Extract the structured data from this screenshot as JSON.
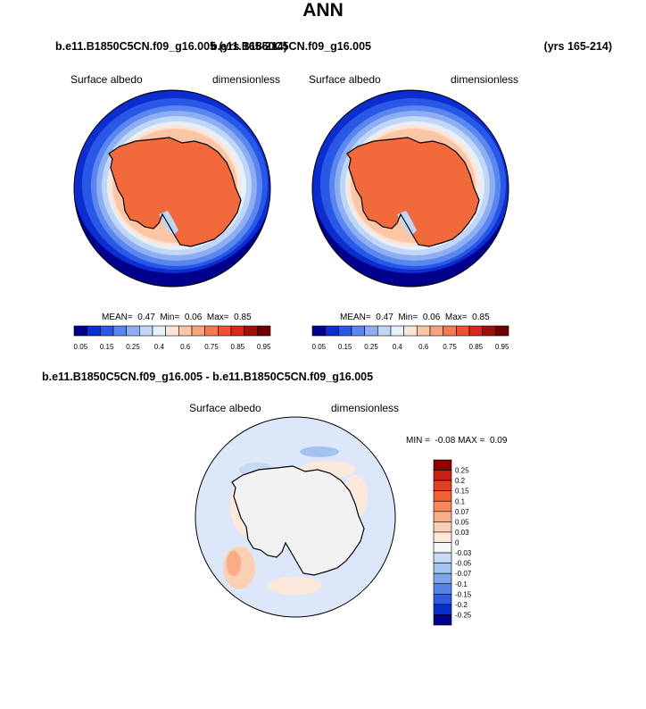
{
  "title": "ANN",
  "panels": [
    {
      "case_label": "b.e11.B1850C5CN.f09_g16.005 (yrs 165-214)",
      "variable": "Surface albedo",
      "units": "dimensionless",
      "stats": {
        "mean": "0.47",
        "min": "0.06",
        "max": "0.85"
      }
    },
    {
      "case_label": "b.e11.B1850C5CN.f09_g16.005",
      "years": "(yrs 165-214)",
      "variable": "Surface albedo",
      "units": "dimensionless",
      "stats": {
        "mean": "0.47",
        "min": "0.06",
        "max": "0.85"
      }
    }
  ],
  "diff": {
    "case_label": "b.e11.B1850C5CN.f09_g16.005 - b.e11.B1850C5CN.f09_g16.005",
    "variable": "Surface albedo",
    "units": "dimensionless",
    "min": "-0.08",
    "max": "0.09"
  },
  "stat_labels": {
    "mean": "MEAN=",
    "min": "Min=",
    "max": "Max=",
    "dmin": "MIN =",
    "dmax": "MAX ="
  },
  "chart_data": [
    {
      "type": "heatmap",
      "projection": "south polar stereographic",
      "title": "Surface albedo",
      "units": "dimensionless",
      "colorbar": {
        "orientation": "horizontal",
        "levels": [
          "0.05",
          "0.15",
          "0.25",
          "0.4",
          "0.6",
          "0.75",
          "0.85",
          "0.95"
        ],
        "colors": [
          "#00008c",
          "#0c2ed0",
          "#2a58e6",
          "#5a86f0",
          "#8eaef2",
          "#c0d6f6",
          "#e6f0fa",
          "#fde4d4",
          "#fcc6a6",
          "#f9a27c",
          "#f57a52",
          "#ee5030",
          "#d8261a",
          "#a00e0a",
          "#6e0000"
        ]
      },
      "stats": {
        "mean": 0.47,
        "min": 0.06,
        "max": 0.85
      }
    },
    {
      "type": "heatmap",
      "projection": "south polar stereographic",
      "title": "Surface albedo",
      "units": "dimensionless",
      "colorbar": {
        "orientation": "horizontal",
        "levels": [
          "0.05",
          "0.15",
          "0.25",
          "0.4",
          "0.6",
          "0.75",
          "0.85",
          "0.95"
        ],
        "colors": [
          "#00008c",
          "#0c2ed0",
          "#2a58e6",
          "#5a86f0",
          "#8eaef2",
          "#c0d6f6",
          "#e6f0fa",
          "#fde4d4",
          "#fcc6a6",
          "#f9a27c",
          "#f57a52",
          "#ee5030",
          "#d8261a",
          "#a00e0a",
          "#6e0000"
        ]
      },
      "stats": {
        "mean": 0.47,
        "min": 0.06,
        "max": 0.85
      }
    },
    {
      "type": "heatmap",
      "projection": "south polar stereographic",
      "title": "Surface albedo",
      "units": "dimensionless",
      "colorbar": {
        "orientation": "vertical",
        "levels": [
          "0.25",
          "0.2",
          "0.15",
          "0.1",
          "0.07",
          "0.05",
          "0.03",
          "0",
          "-0.03",
          "-0.05",
          "-0.07",
          "-0.1",
          "-0.15",
          "-0.2",
          "-0.25"
        ],
        "colors": [
          "#8b0000",
          "#c81e14",
          "#e0401e",
          "#f06032",
          "#f58a5c",
          "#f8ac88",
          "#fbcfb4",
          "#fde8dc",
          "#f5f5f5",
          "#c6daf4",
          "#a4c2f0",
          "#7ea6ec",
          "#5684e6",
          "#2e5ae0",
          "#0c2ec8",
          "#00008c"
        ]
      },
      "stats": {
        "min": -0.08,
        "max": 0.09
      }
    }
  ]
}
